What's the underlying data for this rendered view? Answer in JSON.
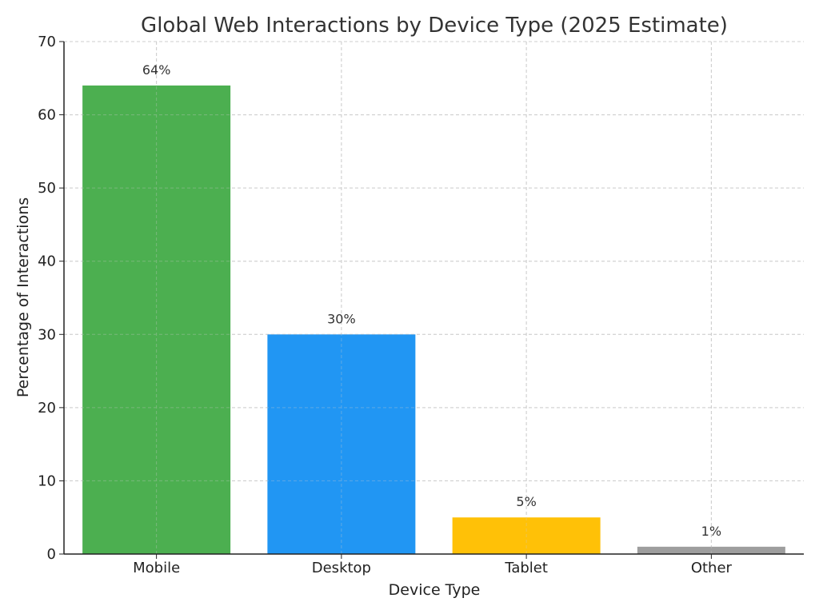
{
  "chart_data": {
    "type": "bar",
    "title": "Global Web Interactions by Device Type (2025 Estimate)",
    "xlabel": "Device Type",
    "ylabel": "Percentage of Interactions",
    "categories": [
      "Mobile",
      "Desktop",
      "Tablet",
      "Other"
    ],
    "values": [
      64,
      30,
      5,
      1
    ],
    "data_labels": [
      "64%",
      "30%",
      "5%",
      "1%"
    ],
    "colors": [
      "#4caf50",
      "#2196f3",
      "#ffc107",
      "#9e9e9e"
    ],
    "ylim": [
      0,
      70
    ],
    "yticks": [
      0,
      10,
      20,
      30,
      40,
      50,
      60,
      70
    ],
    "grid": true
  }
}
